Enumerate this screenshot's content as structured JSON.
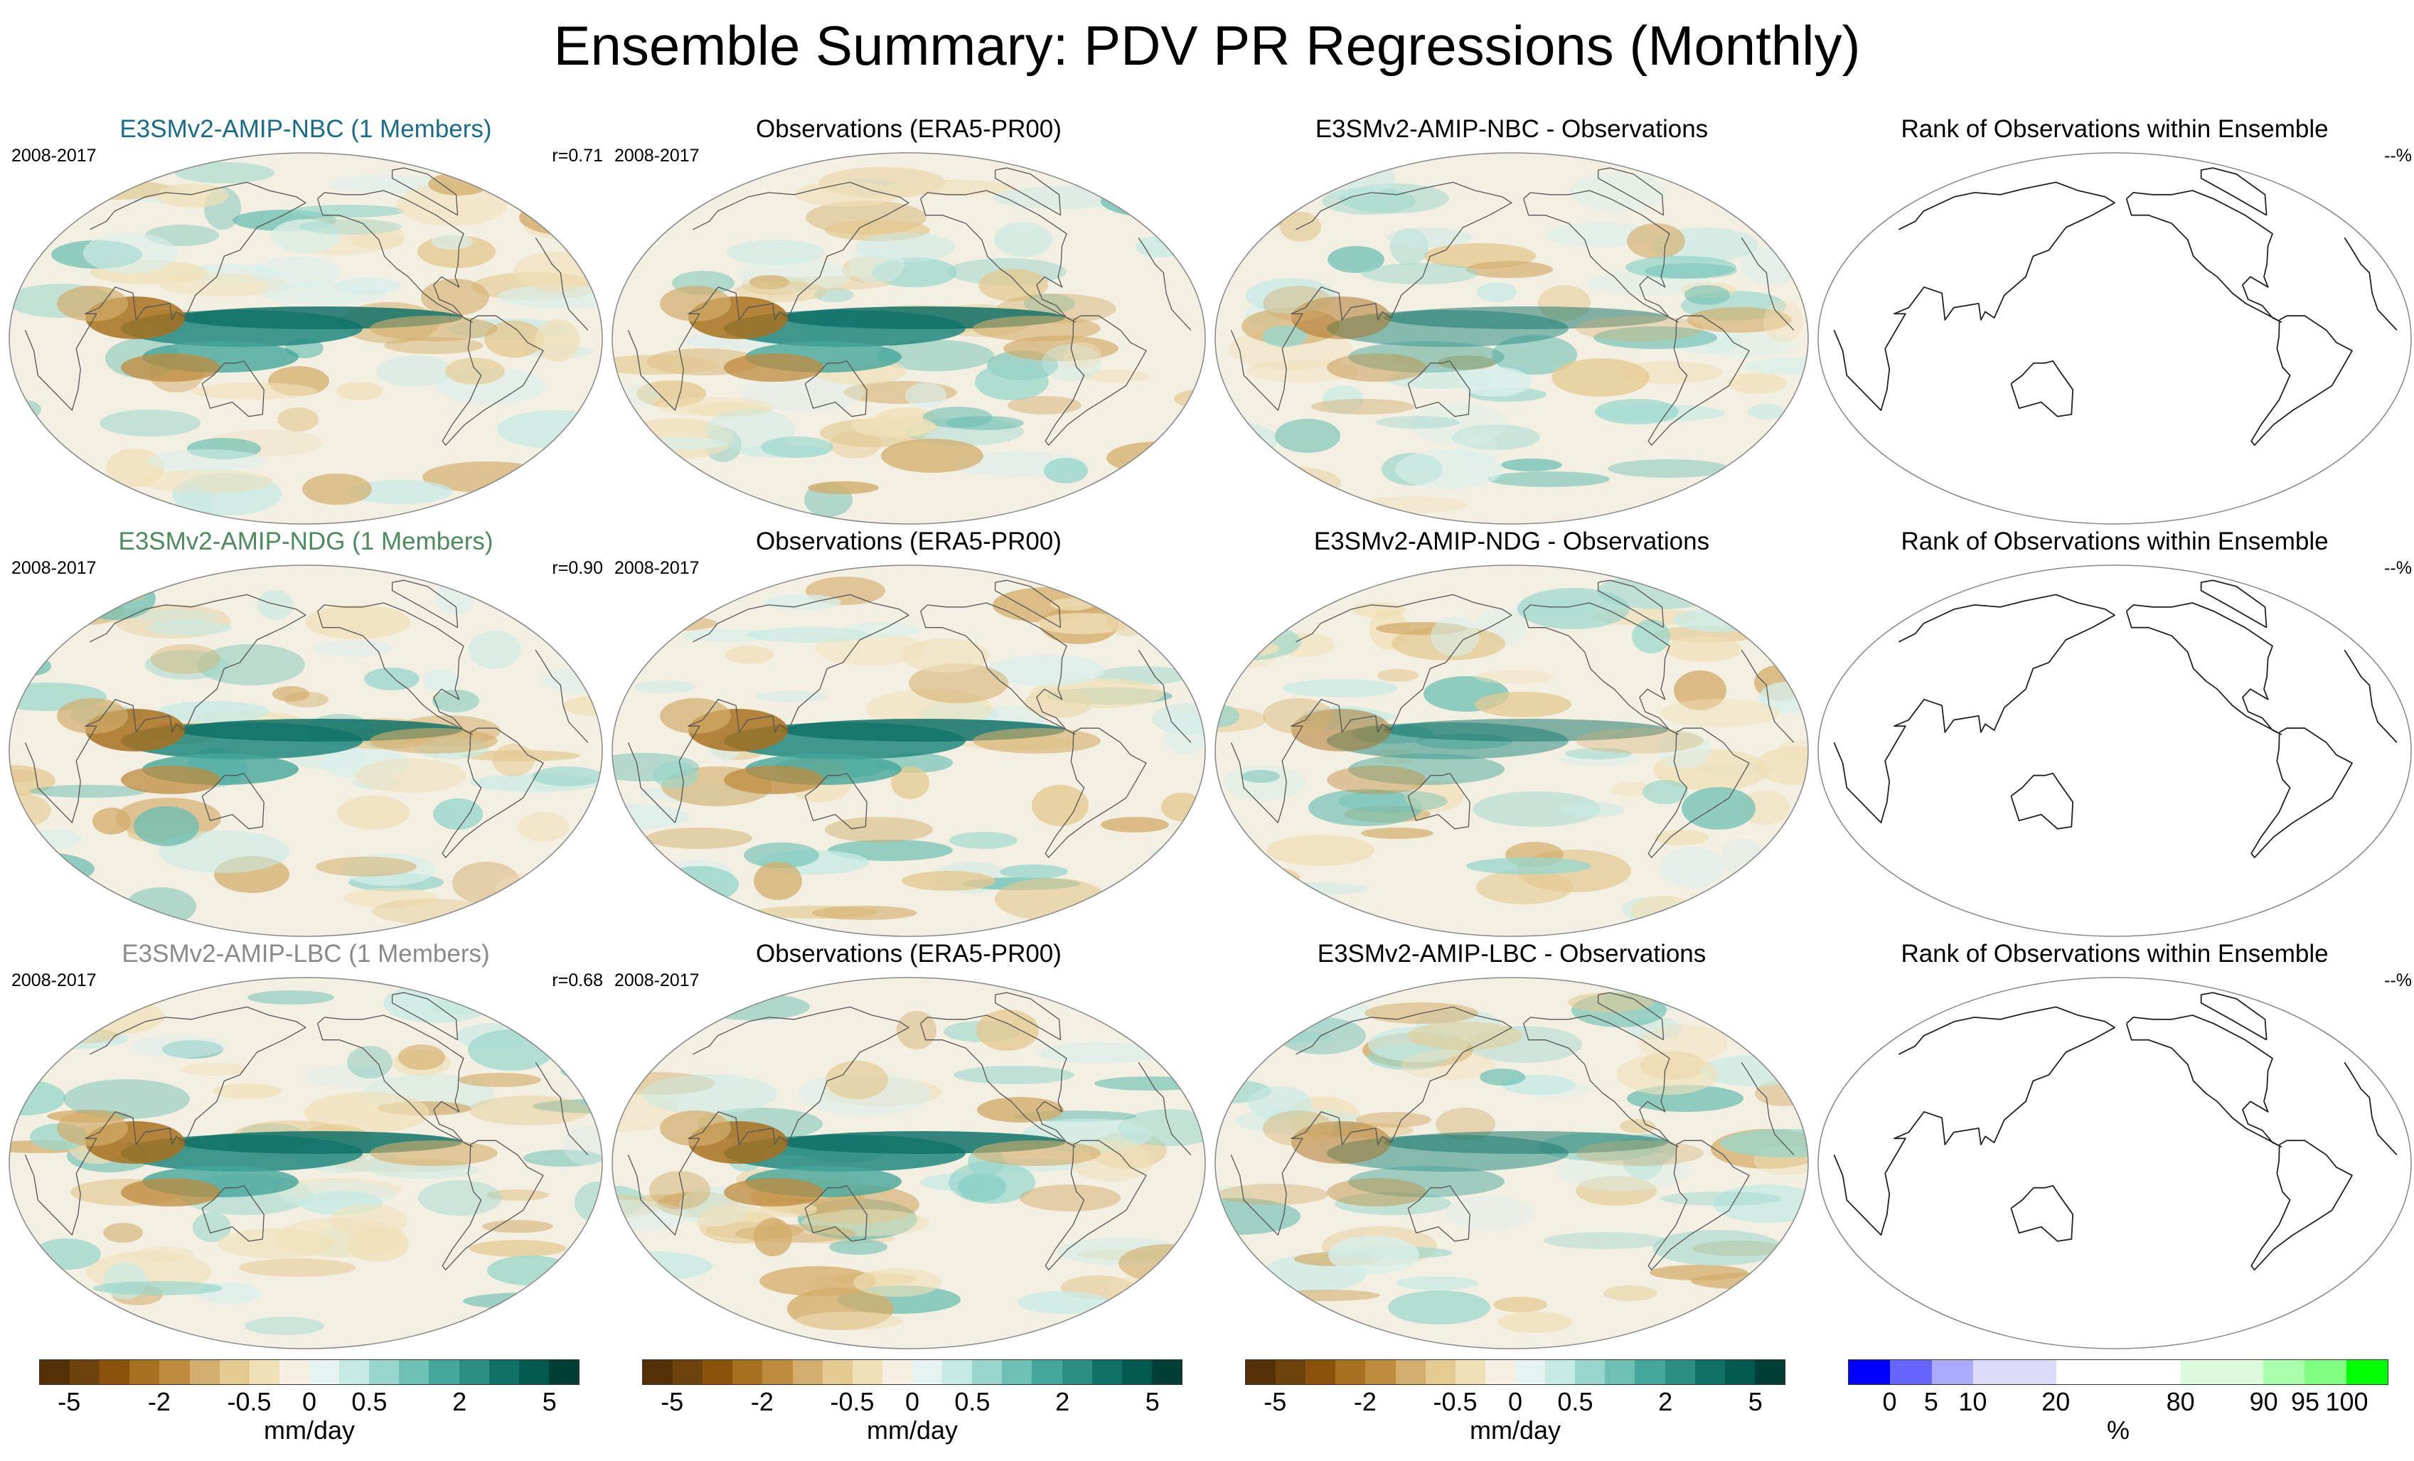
{
  "title": "Ensemble Summary: PDV PR Regressions (Monthly)",
  "rows": [
    {
      "model": {
        "title": "E3SMv2-AMIP-NBC (1 Members)",
        "title_color": "#1b6b8a",
        "period": "2008-2017",
        "corr": "r=0.71"
      },
      "obs": {
        "title": "Observations (ERA5-PR00)",
        "period": "2008-2017"
      },
      "diff": {
        "title": "E3SMv2-AMIP-NBC - Observations"
      },
      "rank": {
        "title": "Rank of Observations within Ensemble",
        "pct": "--%"
      }
    },
    {
      "model": {
        "title": "E3SMv2-AMIP-NDG (1 Members)",
        "title_color": "#4e8a5e",
        "period": "2008-2017",
        "corr": "r=0.90"
      },
      "obs": {
        "title": "Observations (ERA5-PR00)",
        "period": "2008-2017"
      },
      "diff": {
        "title": "E3SMv2-AMIP-NDG - Observations"
      },
      "rank": {
        "title": "Rank of Observations within Ensemble",
        "pct": "--%"
      }
    },
    {
      "model": {
        "title": "E3SMv2-AMIP-LBC (1 Members)",
        "title_color": "#8a8a8a",
        "period": "2008-2017",
        "corr": "r=0.68"
      },
      "obs": {
        "title": "Observations (ERA5-PR00)",
        "period": "2008-2017"
      },
      "diff": {
        "title": "E3SMv2-AMIP-LBC - Observations"
      },
      "rank": {
        "title": "Rank of Observations within Ensemble",
        "pct": "--%"
      }
    }
  ],
  "colorbars": {
    "precip": {
      "colors": [
        "#543005",
        "#6e420b",
        "#8c510a",
        "#a8701f",
        "#bf8b3e",
        "#d3ad6b",
        "#e4c990",
        "#f0e0b8",
        "#f5f0e1",
        "#e5f3f1",
        "#c7eae5",
        "#98d6cc",
        "#6fc0b4",
        "#45a69b",
        "#2b8d84",
        "#117167",
        "#035a51",
        "#013f36"
      ],
      "ticks": [
        "-5",
        "-2",
        "-0.5",
        "0",
        "0.5",
        "2",
        "5"
      ],
      "unit": "mm/day"
    },
    "rank": {
      "colors": [
        "#0000ff",
        "#6666ff",
        "#aaaaff",
        "#dcdcfa",
        "#dcdcfa",
        "#ffffff",
        "#ffffff",
        "#ffffff",
        "#dcfadc",
        "#dcfadc",
        "#aaffaa",
        "#80ff80",
        "#00ff00"
      ],
      "ticks": [
        "0",
        "5",
        "10",
        "20",
        "80",
        "90",
        "95",
        "100"
      ],
      "unit": "%"
    }
  }
}
